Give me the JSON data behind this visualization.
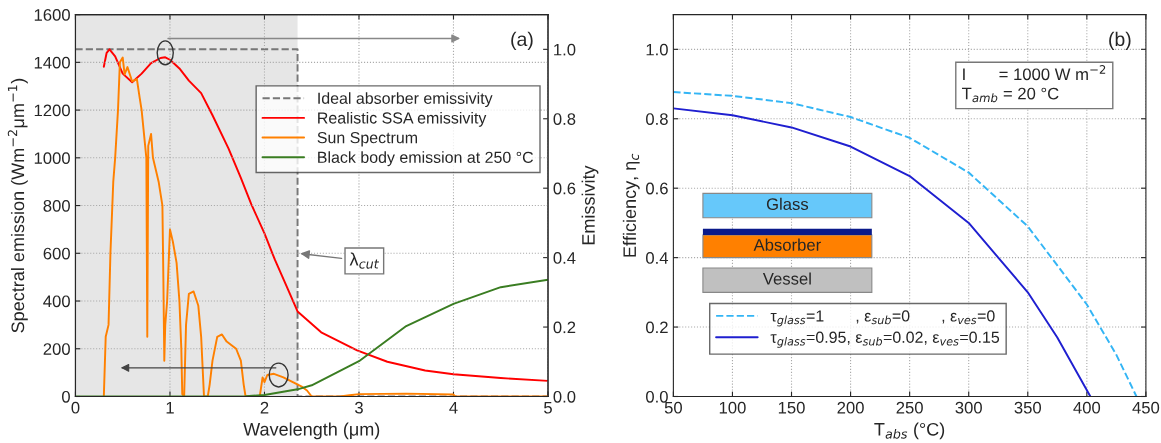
{
  "chart_data": [
    {
      "type": "line",
      "xlabel": "Wavelength (μm)",
      "ylabel": "Spectral emission (Wm$^{−2}$μm$^{−1}$)",
      "y2label": "Emissivity",
      "xlim": [
        0,
        5
      ],
      "xticks": [
        0,
        1,
        2,
        3,
        4,
        5
      ],
      "ylim": [
        0,
        1600
      ],
      "yticks": [
        0,
        200,
        400,
        600,
        800,
        1000,
        1200,
        1400,
        1600
      ],
      "y2lim": [
        0,
        1.1
      ],
      "y2ticks": [
        {
          "value": 0,
          "label": "0.0"
        },
        {
          "value": 0.2,
          "label": "0.2"
        },
        {
          "value": 0.4,
          "label": "0.4"
        },
        {
          "value": 0.6,
          "label": "0.6"
        },
        {
          "value": 0.8,
          "label": "0.8"
        },
        {
          "value": 1.0,
          "label": "1.0"
        }
      ],
      "grid": true,
      "legend": "right",
      "bands": [
        {
          "axis": "x",
          "from": 0,
          "to": 2.35,
          "color": "#e6e6e6"
        }
      ],
      "annotations": [
        "(a)",
        {
          "text": "λ$_{cut}$",
          "x": 2.35,
          "y": 600
        }
      ],
      "series": [
        {
          "name": "Ideal absorber emissivity",
          "color": "#777777",
          "line_style": "dashed",
          "axis": "y2",
          "x": [
            0,
            2.35,
            2.35,
            5
          ],
          "values": [
            1.0,
            1.0,
            0,
            0
          ]
        },
        {
          "name": "Realistic SSA emissivity",
          "color": "#ff0000",
          "axis": "y2",
          "x": [
            0.3,
            0.33,
            0.36,
            0.42,
            0.5,
            0.6,
            0.7,
            0.8,
            0.9,
            0.95,
            1.0,
            1.1,
            1.2,
            1.33,
            1.45,
            1.62,
            1.75,
            1.86,
            2.0,
            2.11,
            2.23,
            2.35,
            2.6,
            2.98,
            3.3,
            3.7,
            4.0,
            4.5,
            5.0
          ],
          "values": [
            0.95,
            0.99,
            1.0,
            0.98,
            0.93,
            0.905,
            0.93,
            0.96,
            0.975,
            0.977,
            0.97,
            0.945,
            0.91,
            0.874,
            0.81,
            0.714,
            0.63,
            0.554,
            0.47,
            0.394,
            0.32,
            0.245,
            0.185,
            0.133,
            0.1,
            0.075,
            0.064,
            0.053,
            0.045
          ]
        },
        {
          "name": "Sun Spectrum",
          "color": "#ff8000",
          "axis": "y",
          "x": [
            0.3,
            0.32,
            0.35,
            0.37,
            0.38,
            0.4,
            0.42,
            0.45,
            0.47,
            0.5,
            0.52,
            0.55,
            0.6,
            0.65,
            0.68,
            0.7,
            0.72,
            0.75,
            0.76,
            0.77,
            0.8,
            0.82,
            0.85,
            0.88,
            0.9,
            0.92,
            0.93,
            0.94,
            0.95,
            0.97,
            1.0,
            1.03,
            1.07,
            1.1,
            1.12,
            1.13,
            1.15,
            1.17,
            1.2,
            1.25,
            1.3,
            1.33,
            1.36,
            1.4,
            1.42,
            1.45,
            1.5,
            1.55,
            1.6,
            1.7,
            1.75,
            1.78,
            1.8,
            1.95,
            1.98,
            2.0,
            2.03,
            2.1,
            2.2,
            2.3,
            2.4,
            2.45,
            2.5,
            2.8,
            2.9,
            3.0,
            3.5,
            4.0,
            4.02,
            5.0
          ],
          "values": [
            0,
            250,
            300,
            600,
            700,
            900,
            1000,
            1200,
            1400,
            1420,
            1350,
            1380,
            1320,
            1330,
            1250,
            1200,
            1120,
            1000,
            250,
            1050,
            1100,
            1000,
            950,
            900,
            850,
            800,
            500,
            150,
            300,
            400,
            700,
            650,
            560,
            400,
            200,
            10,
            0,
            300,
            430,
            440,
            380,
            250,
            0,
            0,
            50,
            150,
            250,
            260,
            230,
            200,
            150,
            50,
            0,
            0,
            80,
            60,
            90,
            95,
            80,
            60,
            40,
            25,
            0,
            0,
            5,
            10,
            12,
            8,
            0,
            0
          ]
        },
        {
          "name": "Black body emission at 250 °C",
          "color": "#3a7d22",
          "axis": "y",
          "x": [
            0,
            1.5,
            1.8,
            2.0,
            2.35,
            2.5,
            3.0,
            3.5,
            4.0,
            4.5,
            5.0
          ],
          "values": [
            0,
            0,
            1,
            6,
            30,
            47,
            148,
            295,
            388,
            458,
            489
          ]
        }
      ]
    },
    {
      "type": "line",
      "xlabel": "T$_{abs}$ (°C)",
      "ylabel": "Efficiency, η$_{c}$",
      "xlim": [
        50,
        450
      ],
      "xticks": [
        50,
        100,
        150,
        200,
        250,
        300,
        350,
        400,
        450
      ],
      "ylim": [
        0,
        1.1
      ],
      "yticks": [
        {
          "value": 0,
          "label": "0.0"
        },
        {
          "value": 0.2,
          "label": "0.2"
        },
        {
          "value": 0.4,
          "label": "0.4"
        },
        {
          "value": 0.6,
          "label": "0.6"
        },
        {
          "value": 0.8,
          "label": "0.8"
        },
        {
          "value": 1.0,
          "label": "1.0"
        }
      ],
      "grid": true,
      "legend": "bottom left",
      "annotations": [
        "(b)",
        "I       = 1000 W m$^{−2}$\nT$_{amb}$ = 20 °C",
        "Glass",
        "Absorber",
        "Vessel"
      ],
      "series": [
        {
          "name": "τ$_{glass}$=1       , ε$_{sub}$=0       , ε$_{ves}$=0",
          "color": "#33b5f5",
          "line_style": "dashed",
          "x": [
            50,
            100,
            150,
            200,
            250,
            300,
            350,
            400,
            425,
            442
          ],
          "values": [
            0.877,
            0.866,
            0.845,
            0.805,
            0.745,
            0.645,
            0.49,
            0.265,
            0.12,
            0
          ]
        },
        {
          "name": "τ$_{glass}$=0.95, ε$_{sub}$=0.02, ε$_{ves}$=0.15",
          "color": "#1f1fd0",
          "x": [
            50,
            100,
            150,
            200,
            250,
            300,
            350,
            375,
            403
          ],
          "values": [
            0.83,
            0.81,
            0.775,
            0.72,
            0.635,
            0.5,
            0.3,
            0.17,
            0
          ]
        }
      ]
    }
  ]
}
